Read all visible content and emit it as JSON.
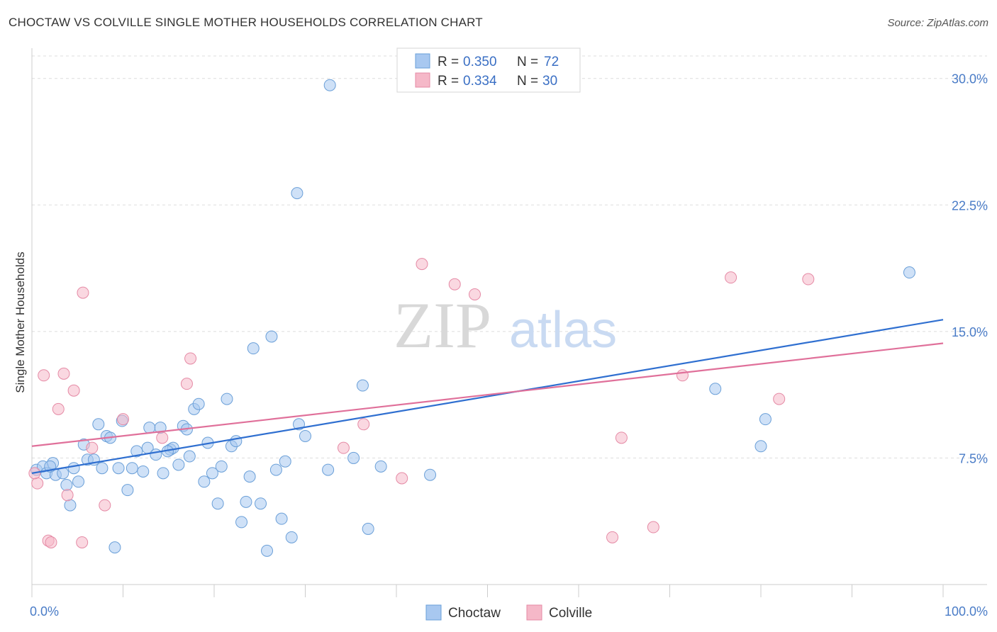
{
  "title": "CHOCTAW VS COLVILLE SINGLE MOTHER HOUSEHOLDS CORRELATION CHART",
  "source": "Source: ZipAtlas.com",
  "watermark": {
    "zip": "ZIP",
    "atlas": "atlas"
  },
  "legend": [
    {
      "name": "Choctaw",
      "r_label": "R =",
      "r": "0.350",
      "n_label": "N =",
      "n": "72",
      "color": "#a8c8f0",
      "stroke": "#6a9fd8"
    },
    {
      "name": "Colville",
      "r_label": "R =",
      "r": "0.334",
      "n_label": "N =",
      "n": "30",
      "color": "#f5b8c8",
      "stroke": "#e58aa5"
    }
  ],
  "chart_data": {
    "type": "scatter",
    "title": "CHOCTAW VS COLVILLE SINGLE MOTHER HOUSEHOLDS CORRELATION CHART",
    "xlabel": "",
    "ylabel": "Single Mother Households",
    "xlim": [
      0,
      100
    ],
    "ylim": [
      0,
      31.5
    ],
    "x_tick_labels": [
      "0.0%",
      "100.0%"
    ],
    "y_ticks": [
      7.5,
      15.0,
      22.5,
      30.0
    ],
    "y_tick_labels": [
      "7.5%",
      "15.0%",
      "22.5%",
      "30.0%"
    ],
    "series": [
      {
        "name": "Choctaw",
        "color": "#a8c8f0",
        "stroke": "#6a9fd8",
        "line_color": "#2f6fd0",
        "trend": [
          [
            0,
            6.6
          ],
          [
            100,
            15.7
          ]
        ],
        "points": [
          [
            0.5,
            6.8
          ],
          [
            1.2,
            7.0
          ],
          [
            1.6,
            6.6
          ],
          [
            2.3,
            7.2
          ],
          [
            2.6,
            6.5
          ],
          [
            3.4,
            6.6
          ],
          [
            3.8,
            5.9
          ],
          [
            4.2,
            4.7
          ],
          [
            4.6,
            6.9
          ],
          [
            5.1,
            6.1
          ],
          [
            5.7,
            8.3
          ],
          [
            6.1,
            7.4
          ],
          [
            6.8,
            7.4
          ],
          [
            7.3,
            9.5
          ],
          [
            7.7,
            6.9
          ],
          [
            8.2,
            8.8
          ],
          [
            8.6,
            8.7
          ],
          [
            9.1,
            2.2
          ],
          [
            9.5,
            6.9
          ],
          [
            9.9,
            9.7
          ],
          [
            10.5,
            5.6
          ],
          [
            11.0,
            6.9
          ],
          [
            11.5,
            7.9
          ],
          [
            12.2,
            6.7
          ],
          [
            12.7,
            8.1
          ],
          [
            12.9,
            9.3
          ],
          [
            13.6,
            7.7
          ],
          [
            14.1,
            9.3
          ],
          [
            14.4,
            6.6
          ],
          [
            15.2,
            8.0
          ],
          [
            15.5,
            8.1
          ],
          [
            16.1,
            7.1
          ],
          [
            16.6,
            9.4
          ],
          [
            17.0,
            9.2
          ],
          [
            17.3,
            7.6
          ],
          [
            17.8,
            10.4
          ],
          [
            18.3,
            10.7
          ],
          [
            18.9,
            6.1
          ],
          [
            19.3,
            8.4
          ],
          [
            19.8,
            6.6
          ],
          [
            20.4,
            4.8
          ],
          [
            20.8,
            7.0
          ],
          [
            21.4,
            11.0
          ],
          [
            21.9,
            8.2
          ],
          [
            22.4,
            8.5
          ],
          [
            23.0,
            3.7
          ],
          [
            23.5,
            4.9
          ],
          [
            23.9,
            6.4
          ],
          [
            24.3,
            14.0
          ],
          [
            25.1,
            4.8
          ],
          [
            25.8,
            2.0
          ],
          [
            26.3,
            14.7
          ],
          [
            26.8,
            6.8
          ],
          [
            27.4,
            3.9
          ],
          [
            27.8,
            7.3
          ],
          [
            28.5,
            2.8
          ],
          [
            29.1,
            23.2
          ],
          [
            29.3,
            9.5
          ],
          [
            30.0,
            8.8
          ],
          [
            32.5,
            6.8
          ],
          [
            32.7,
            29.6
          ],
          [
            35.3,
            7.5
          ],
          [
            36.3,
            11.8
          ],
          [
            36.9,
            3.3
          ],
          [
            38.3,
            7.0
          ],
          [
            43.7,
            6.5
          ],
          [
            75.0,
            11.6
          ],
          [
            80.0,
            8.2
          ],
          [
            80.5,
            9.8
          ],
          [
            96.3,
            18.5
          ],
          [
            2.0,
            7.0
          ],
          [
            14.9,
            7.9
          ]
        ]
      },
      {
        "name": "Colville",
        "color": "#f5b8c8",
        "stroke": "#e58aa5",
        "line_color": "#e0709a",
        "trend": [
          [
            0,
            8.2
          ],
          [
            100,
            14.3
          ]
        ],
        "points": [
          [
            0.6,
            6.0
          ],
          [
            1.3,
            12.4
          ],
          [
            1.8,
            2.6
          ],
          [
            2.1,
            2.5
          ],
          [
            2.9,
            10.4
          ],
          [
            3.5,
            12.5
          ],
          [
            3.9,
            5.3
          ],
          [
            4.6,
            11.5
          ],
          [
            5.5,
            2.5
          ],
          [
            5.6,
            17.3
          ],
          [
            6.6,
            8.1
          ],
          [
            8.0,
            4.7
          ],
          [
            10.0,
            9.8
          ],
          [
            14.3,
            8.7
          ],
          [
            17.0,
            11.9
          ],
          [
            17.4,
            13.4
          ],
          [
            34.2,
            8.1
          ],
          [
            36.4,
            9.5
          ],
          [
            40.6,
            6.3
          ],
          [
            42.8,
            19.0
          ],
          [
            46.4,
            17.8
          ],
          [
            48.6,
            17.2
          ],
          [
            63.7,
            2.8
          ],
          [
            64.7,
            8.7
          ],
          [
            68.2,
            3.4
          ],
          [
            71.4,
            12.4
          ],
          [
            76.7,
            18.2
          ],
          [
            82.0,
            11.0
          ],
          [
            85.2,
            18.1
          ],
          [
            0.3,
            6.6
          ]
        ]
      }
    ]
  }
}
